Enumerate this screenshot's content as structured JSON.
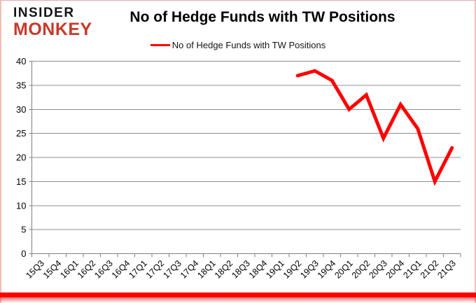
{
  "brand": {
    "line1": "INSIDER",
    "line2": "MONKEY",
    "line1_color": "#141414",
    "line2_color": "#c8392b"
  },
  "header": {
    "title": "No of Hedge Funds with TW Positions"
  },
  "legend": {
    "label": "No of Hedge Funds with TW Positions",
    "swatch_color": "#fe0100"
  },
  "colors": {
    "line": "#fe0100",
    "grid": "#8f8f8f",
    "axis": "#808080",
    "text": "#000000",
    "accent_border": "#fe0100",
    "frame_border": "#f3bcb6"
  },
  "chart_data": {
    "type": "line",
    "title": "No of Hedge Funds with TW Positions",
    "xlabel": "",
    "ylabel": "",
    "categories": [
      "15Q3",
      "15Q4",
      "16Q1",
      "16Q2",
      "16Q3",
      "16Q4",
      "17Q1",
      "17Q2",
      "17Q3",
      "17Q4",
      "18Q1",
      "18Q2",
      "18Q3",
      "18Q4",
      "19Q1",
      "19Q2",
      "19Q3",
      "19Q4",
      "20Q1",
      "20Q2",
      "20Q3",
      "20Q4",
      "21Q1",
      "21Q2",
      "21Q3"
    ],
    "series": [
      {
        "name": "No of Hedge Funds with TW Positions",
        "color": "#fe0100",
        "values": [
          null,
          null,
          null,
          null,
          null,
          null,
          null,
          null,
          null,
          null,
          null,
          null,
          null,
          null,
          null,
          37,
          38,
          36,
          30,
          33,
          24,
          31,
          26,
          15,
          22
        ]
      }
    ],
    "ylim": [
      0,
      40
    ],
    "yticks": [
      0,
      5,
      10,
      15,
      20,
      25,
      30,
      35,
      40
    ],
    "grid": true,
    "legend_position": "top-center"
  }
}
